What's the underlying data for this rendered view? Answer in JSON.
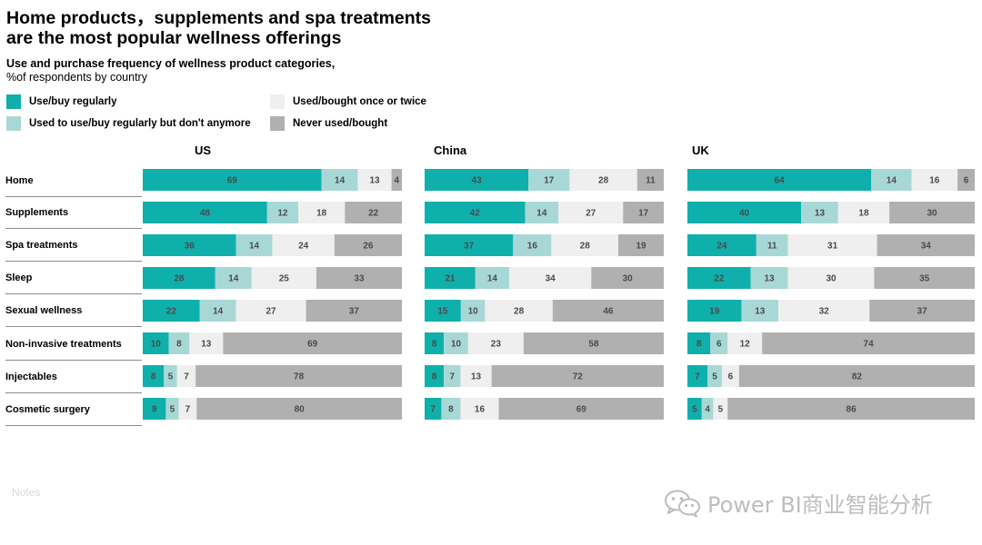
{
  "header": {
    "title_line1": "Home products，supplements and spa treatments",
    "title_line2": "are the most popular wellness offerings",
    "subtitle": "Use and purchase frequency of wellness product categories,",
    "unit": "%of respondents by country"
  },
  "legend": [
    {
      "label": "Use/buy regularly",
      "color": "#0fb0ab"
    },
    {
      "label": "Used to use/buy regularly but don't anymore",
      "color": "#a8d8d6"
    },
    {
      "label": "Used/bought once or twice",
      "color": "#efefef"
    },
    {
      "label": "Never used/bought",
      "color": "#b0b0b0"
    }
  ],
  "chart_data": {
    "type": "bar",
    "orientation": "horizontal",
    "stacked": true,
    "categories": [
      "Home",
      "Supplements",
      "Spa treatments",
      "Sleep",
      "Sexual wellness",
      "Non-invasive treatments",
      "Injectables",
      "Cosmetic surgery"
    ],
    "series_names": [
      "Use/buy regularly",
      "Used to use/buy regularly but don't anymore",
      "Used/bought once or twice",
      "Never used/bought"
    ],
    "panels": [
      {
        "country": "US",
        "values": [
          [
            69,
            14,
            13,
            4
          ],
          [
            48,
            12,
            18,
            22
          ],
          [
            36,
            14,
            24,
            26
          ],
          [
            28,
            14,
            25,
            33
          ],
          [
            22,
            14,
            27,
            37
          ],
          [
            10,
            8,
            13,
            69
          ],
          [
            8,
            5,
            7,
            78
          ],
          [
            9,
            5,
            7,
            80
          ]
        ]
      },
      {
        "country": "China",
        "values": [
          [
            43,
            17,
            28,
            11
          ],
          [
            42,
            14,
            27,
            17
          ],
          [
            37,
            16,
            28,
            19
          ],
          [
            21,
            14,
            34,
            30
          ],
          [
            15,
            10,
            28,
            46
          ],
          [
            8,
            10,
            23,
            58
          ],
          [
            8,
            7,
            13,
            72
          ],
          [
            7,
            8,
            16,
            69
          ]
        ]
      },
      {
        "country": "UK",
        "values": [
          [
            64,
            14,
            16,
            6
          ],
          [
            40,
            13,
            18,
            30
          ],
          [
            24,
            11,
            31,
            34
          ],
          [
            22,
            13,
            30,
            35
          ],
          [
            19,
            13,
            32,
            37
          ],
          [
            8,
            6,
            12,
            74
          ],
          [
            7,
            5,
            6,
            82
          ],
          [
            5,
            4,
            5,
            86
          ]
        ]
      }
    ]
  },
  "footer": {
    "notes": "Notes",
    "watermark": "Power BI商业智能分析",
    "watermark_icon": "wechat-icon"
  }
}
